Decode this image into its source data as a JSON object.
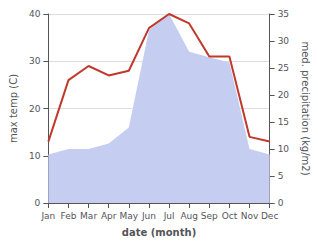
{
  "chart_data": {
    "type": "line",
    "categories": [
      "Jan",
      "Feb",
      "Mar",
      "Apr",
      "May",
      "Jun",
      "Jul",
      "Aug",
      "Sep",
      "Oct",
      "Nov",
      "Dec"
    ],
    "xlabel": "date (month)",
    "ylabel": "max temp (C)",
    "y2label": "med. precipitation (kg/m2)",
    "series": [
      {
        "type": "area",
        "axis": "y2",
        "color": "#c5cef0",
        "values": [
          9,
          10,
          10,
          11,
          14,
          32,
          35,
          28,
          27,
          26,
          10,
          9
        ]
      },
      {
        "type": "line",
        "color": "#c0392b",
        "values": [
          13,
          26,
          29,
          27,
          28,
          37,
          40,
          38,
          31,
          31,
          14,
          13
        ]
      }
    ],
    "ylim": [
      0,
      40
    ],
    "yticks": [
      0,
      10,
      20,
      30,
      40
    ],
    "y2lim": [
      0,
      35
    ],
    "y2ticks": [
      0,
      5,
      10,
      15,
      20,
      25,
      30,
      35
    ],
    "grid": true
  }
}
